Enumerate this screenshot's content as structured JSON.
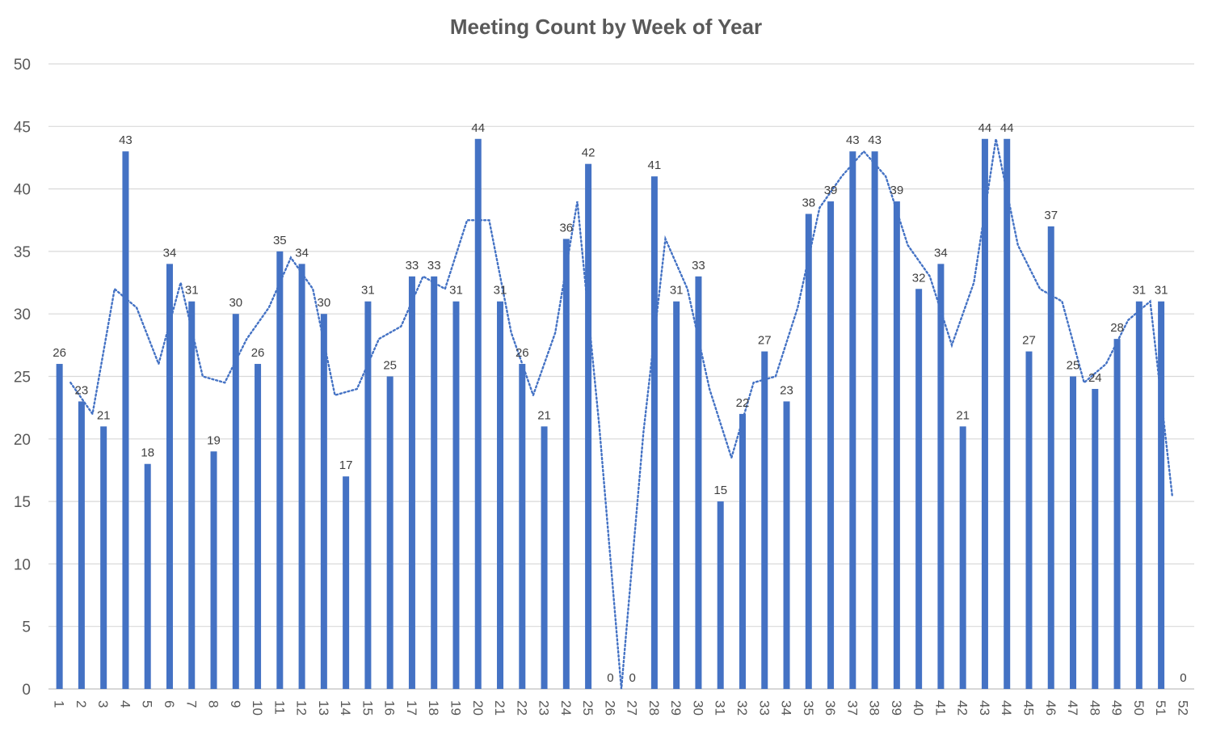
{
  "chart_data": {
    "type": "bar",
    "title": "Meeting Count by Week of Year",
    "xlabel": "",
    "ylabel": "",
    "ylim": [
      0,
      50
    ],
    "yticks": [
      0,
      5,
      10,
      15,
      20,
      25,
      30,
      35,
      40,
      45,
      50
    ],
    "grid": true,
    "legend": "none",
    "categories": [
      "1",
      "2",
      "3",
      "4",
      "5",
      "6",
      "7",
      "8",
      "9",
      "10",
      "11",
      "12",
      "13",
      "14",
      "15",
      "16",
      "17",
      "18",
      "19",
      "20",
      "21",
      "22",
      "23",
      "24",
      "25",
      "26",
      "27",
      "28",
      "29",
      "30",
      "31",
      "32",
      "33",
      "34",
      "35",
      "36",
      "37",
      "38",
      "39",
      "40",
      "41",
      "42",
      "43",
      "44",
      "45",
      "46",
      "47",
      "48",
      "49",
      "50",
      "51",
      "52"
    ],
    "series": [
      {
        "values": [
          26,
          23,
          21,
          43,
          18,
          34,
          31,
          19,
          30,
          26,
          35,
          34,
          30,
          17,
          31,
          25,
          33,
          33,
          31,
          44,
          31,
          26,
          21,
          36,
          42,
          0,
          0,
          41,
          31,
          33,
          15,
          22,
          27,
          23,
          38,
          39,
          43,
          43,
          39,
          32,
          34,
          21,
          44,
          44,
          27,
          37,
          25,
          24,
          28,
          31,
          31,
          0
        ],
        "color": "#4472C4",
        "data_labels": true
      }
    ],
    "trendline": {
      "type": "moving-average",
      "period": 2,
      "style": "dotted",
      "color": "#4472C4"
    }
  }
}
